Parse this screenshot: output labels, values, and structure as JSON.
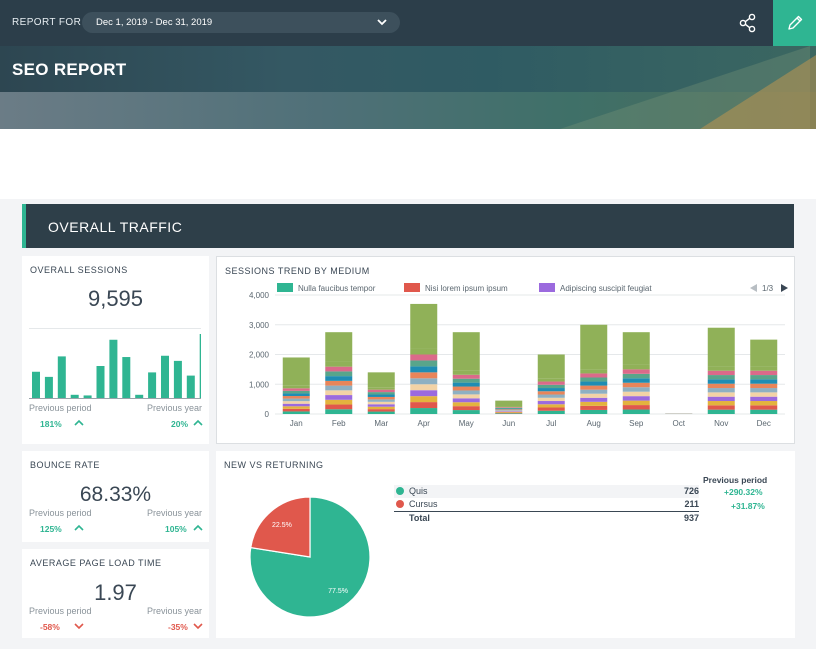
{
  "header": {
    "report_for_label": "REPORT FOR",
    "date_range": "Dec 1, 2019 - Dec 31, 2019",
    "page_title": "SEO REPORT"
  },
  "section": {
    "title": "OVERALL TRAFFIC"
  },
  "overall_sessions": {
    "title": "OVERALL SESSIONS",
    "value": "9,595",
    "prev_period_label": "Previous period",
    "prev_year_label": "Previous year",
    "prev_period_change": "181%",
    "prev_year_change": "20%",
    "sparkline": [
      0.41,
      0.33,
      0.65,
      0.05,
      0.04,
      0.5,
      0.91,
      0.64,
      0.05,
      0.4,
      0.66,
      0.58,
      0.35,
      1.0
    ]
  },
  "sessions_trend": {
    "title": "SESSIONS TREND BY MEDIUM",
    "legend_page": "1/3",
    "chart_data": {
      "type": "bar",
      "stacked": true,
      "categories": [
        "Jan",
        "Feb",
        "Mar",
        "Apr",
        "May",
        "Jun",
        "Jul",
        "Aug",
        "Sep",
        "Oct",
        "Nov",
        "Dec"
      ],
      "ylim": [
        0,
        4000
      ],
      "yticks": [
        "0",
        "1,000",
        "2,000",
        "3,000",
        "4,000"
      ],
      "legend_entries": [
        {
          "name": "Nulla faucibus tempor",
          "color": "#2fb592"
        },
        {
          "name": "Nisi lorem ipsum ipsum",
          "color": "#e0584c"
        },
        {
          "name": "Adipiscing suscipit feugiat",
          "color": "#9b6ade"
        }
      ],
      "totals": [
        1900,
        2750,
        1400,
        3700,
        2750,
        450,
        2000,
        3000,
        2750,
        20,
        2900,
        2500
      ],
      "top_segment": [
        950,
        1000,
        500,
        1500,
        1300,
        200,
        800,
        1500,
        1100,
        0,
        1300,
        900
      ],
      "segment_colors": [
        "#2fb592",
        "#e0584c",
        "#e3b33e",
        "#9b6ade",
        "#f3d3a6",
        "#8eb0c2",
        "#e8855a",
        "#1f8db3",
        "#59a58b",
        "#db6a8a",
        "#90b158"
      ]
    }
  },
  "bounce_rate": {
    "title": "BOUNCE RATE",
    "value": "68.33%",
    "prev_period_label": "Previous period",
    "prev_year_label": "Previous year",
    "prev_period_change": "125%",
    "prev_year_change": "105%"
  },
  "page_load": {
    "title": "AVERAGE PAGE LOAD TIME",
    "value": "1.97",
    "prev_period_label": "Previous period",
    "prev_year_label": "Previous year",
    "prev_period_change": "-58%",
    "prev_year_change": "-35%"
  },
  "new_vs_returning": {
    "title": "NEW VS RETURNING",
    "prev_period_header": "Previous period",
    "rows": [
      {
        "label": "Quis",
        "value": "726",
        "change": "+290.32%",
        "color": "#2fb592"
      },
      {
        "label": "Cursus",
        "value": "211",
        "change": "+31.87%",
        "color": "#e0584c"
      }
    ],
    "total_label": "Total",
    "total_value": "937",
    "chart_data": {
      "type": "pie",
      "slices": [
        {
          "label": "77.5%",
          "value": 77.5,
          "color": "#2fb592"
        },
        {
          "label": "22.5%",
          "value": 22.5,
          "color": "#e0584c"
        }
      ]
    }
  }
}
